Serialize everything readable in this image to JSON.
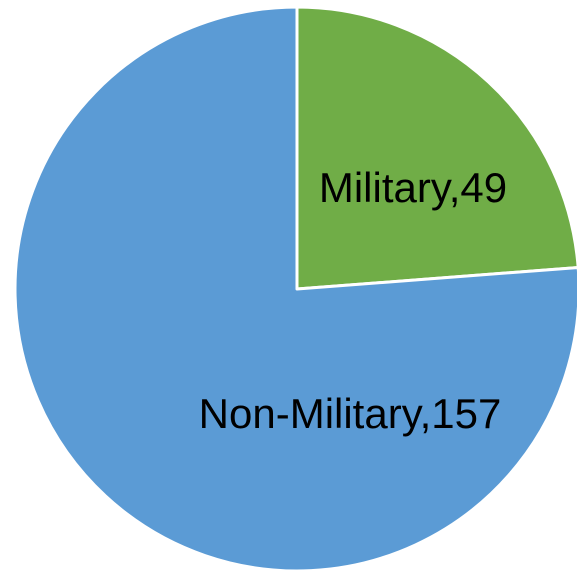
{
  "chart_data": {
    "type": "pie",
    "title": "",
    "start_angle": "12 o'clock",
    "direction": "clockwise",
    "slices": [
      {
        "label": "Military",
        "value": 49,
        "color": "#70ad47",
        "data_label": "Military,49"
      },
      {
        "label": "Non-Military",
        "value": 157,
        "color": "#5b9bd5",
        "data_label": "Non-Military,157"
      }
    ]
  }
}
